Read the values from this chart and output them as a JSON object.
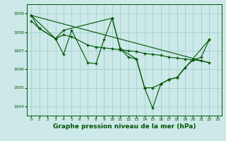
{
  "background_color": "#cce8e8",
  "grid_color": "#99cccc",
  "line_color": "#005500",
  "marker_color": "#005500",
  "xlabel": "Graphe pression niveau de la mer (hPa)",
  "xlabel_fontsize": 6.5,
  "xlim": [
    -0.5,
    23.5
  ],
  "ylim": [
    1003.5,
    1009.5
  ],
  "yticks": [
    1004,
    1005,
    1006,
    1007,
    1008,
    1009
  ],
  "xticks": [
    0,
    1,
    2,
    3,
    4,
    5,
    6,
    7,
    8,
    9,
    10,
    11,
    12,
    13,
    14,
    15,
    16,
    17,
    18,
    19,
    20,
    21,
    22,
    23
  ],
  "series": [
    {
      "x": [
        0,
        1,
        3,
        4,
        5,
        7,
        8,
        9,
        10,
        11,
        12,
        13,
        14,
        15,
        16,
        17,
        18,
        19,
        20,
        21,
        22
      ],
      "y": [
        1008.9,
        1008.2,
        1007.65,
        1006.8,
        1008.1,
        1006.35,
        1006.3,
        1007.6,
        1008.75,
        1007.1,
        1006.65,
        1006.55,
        1005.0,
        1005.0,
        1005.2,
        1005.45,
        1005.55,
        1006.1,
        1006.5,
        1006.65,
        1007.6
      ]
    },
    {
      "x": [
        0,
        1,
        3,
        4,
        5,
        7,
        8,
        9,
        10,
        11,
        12,
        13,
        14,
        15,
        16,
        17,
        18,
        19,
        20,
        21,
        22
      ],
      "y": [
        1008.6,
        1008.2,
        1007.65,
        1007.85,
        1007.75,
        1007.3,
        1007.2,
        1007.15,
        1007.1,
        1007.05,
        1007.0,
        1006.95,
        1006.85,
        1006.8,
        1006.75,
        1006.65,
        1006.6,
        1006.55,
        1006.5,
        1006.45,
        1006.35
      ]
    },
    {
      "x": [
        0,
        3,
        4,
        10,
        11,
        13,
        14,
        15,
        16,
        17,
        18,
        22
      ],
      "y": [
        1008.9,
        1007.65,
        1008.1,
        1008.75,
        1007.1,
        1006.55,
        1005.0,
        1003.9,
        1005.2,
        1005.45,
        1005.55,
        1007.6
      ]
    },
    {
      "x": [
        0,
        22
      ],
      "y": [
        1008.9,
        1006.35
      ]
    }
  ]
}
